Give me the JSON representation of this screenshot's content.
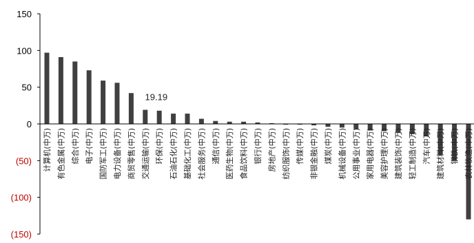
{
  "chart_data": {
    "type": "bar",
    "ylim": [
      -150,
      150
    ],
    "yticks": [
      150,
      100,
      50,
      0,
      -50,
      -100,
      -150
    ],
    "ytick_labels": [
      "150",
      "100",
      "50",
      "0",
      "(50)",
      "(100)",
      "(150)"
    ],
    "negative_tick_color": "#c00000",
    "positive_tick_color": "#000000",
    "bar_color": "#404040",
    "grid": false,
    "categories": [
      "计算机(中万)",
      "有色金属(中万)",
      "综合(中万)",
      "电子(中万)",
      "国防军工(中万)",
      "电力设备(中万)",
      "商贸零售(中万)",
      "交通运输(中万)",
      "环保(中万)",
      "石油石化(中万)",
      "基础化工(中万)",
      "社会服务(中万)",
      "通信(中万)",
      "医药生物(中万)",
      "食品饮料(中万)",
      "银行(中万)",
      "房地产(中万)",
      "纺织服饰(中万)",
      "传媒(中万)",
      "非银金融(中万)",
      "煤炭(中万)",
      "机械设备(中万)",
      "公用事业(中万)",
      "家用电器(中万)",
      "美容护理(中万)",
      "建筑装饰(中万)",
      "轻工制造(中万)",
      "汽车(中万)",
      "建筑材料(中万)",
      "钢铁(中万)",
      "农林牧渔(中万)"
    ],
    "values": [
      97,
      91,
      85,
      73,
      59,
      56,
      42,
      19.19,
      18,
      14,
      14,
      7,
      4,
      3,
      3,
      2,
      1,
      -1,
      -1,
      -2,
      -4,
      -5,
      -7,
      -9,
      -10,
      -12,
      -14,
      -17,
      -42,
      -50,
      -130
    ],
    "annotations": [
      {
        "index": 7,
        "text": "19.19"
      }
    ]
  }
}
